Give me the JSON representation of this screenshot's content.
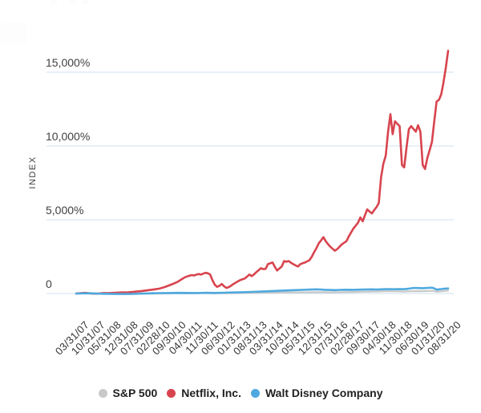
{
  "figure": {
    "y_axis_title": "INDEX",
    "y_tick_labels": [
      "15,000%",
      "10,000%",
      "5,000%",
      "0"
    ]
  },
  "chart_data": {
    "type": "line",
    "title": "",
    "ylabel": "INDEX",
    "y_unit": "percent cumulative return",
    "ylim": [
      -500,
      17000
    ],
    "y_ticks": [
      15000,
      10000,
      5000,
      0
    ],
    "grid": "horizontal",
    "legend_position": "bottom",
    "x_tick_labels": [
      "03/31/07",
      "10/31/07",
      "05/31/08",
      "12/31/08",
      "07/31/09",
      "02/28/10",
      "09/30/10",
      "04/30/11",
      "11/30/11",
      "06/30/12",
      "01/31/13",
      "08/31/13",
      "03/31/14",
      "10/31/14",
      "05/31/15",
      "12/31/15",
      "07/31/16",
      "02/28/17",
      "09/30/17",
      "04/30/18",
      "11/30/18",
      "06/30/19",
      "01/31/20",
      "08/31/20"
    ],
    "x_tick_month_index": [
      0,
      7,
      14,
      21,
      28,
      35,
      42,
      49,
      56,
      63,
      70,
      77,
      84,
      91,
      98,
      105,
      112,
      119,
      126,
      133,
      140,
      147,
      154,
      161
    ],
    "x_months_total": 161,
    "gridline_color": "#cfe0ef",
    "series": [
      {
        "name": "S&P 500",
        "color": "#c9c9c9",
        "points": [
          [
            0,
            0
          ],
          [
            3,
            5
          ],
          [
            6,
            8
          ],
          [
            9,
            -8
          ],
          [
            12,
            -18
          ],
          [
            15,
            -28
          ],
          [
            18,
            -38
          ],
          [
            21,
            -45
          ],
          [
            24,
            -35
          ],
          [
            27,
            -20
          ],
          [
            30,
            -10
          ],
          [
            33,
            -5
          ],
          [
            36,
            0
          ],
          [
            40,
            8
          ],
          [
            44,
            12
          ],
          [
            48,
            5
          ],
          [
            52,
            15
          ],
          [
            56,
            22
          ],
          [
            60,
            12
          ],
          [
            64,
            18
          ],
          [
            68,
            25
          ],
          [
            72,
            30
          ],
          [
            76,
            40
          ],
          [
            80,
            48
          ],
          [
            84,
            55
          ],
          [
            88,
            65
          ],
          [
            92,
            75
          ],
          [
            96,
            72
          ],
          [
            100,
            80
          ],
          [
            104,
            90
          ],
          [
            108,
            85
          ],
          [
            110,
            78
          ],
          [
            112,
            82
          ],
          [
            116,
            95
          ],
          [
            120,
            105
          ],
          [
            124,
            120
          ],
          [
            128,
            130
          ],
          [
            132,
            140
          ],
          [
            134,
            150
          ],
          [
            136,
            155
          ],
          [
            138,
            148
          ],
          [
            140,
            152
          ],
          [
            141,
            125
          ],
          [
            143,
            140
          ],
          [
            145,
            155
          ],
          [
            148,
            165
          ],
          [
            150,
            160
          ],
          [
            152,
            170
          ],
          [
            154,
            180
          ],
          [
            155,
            165
          ],
          [
            156,
            120
          ],
          [
            157,
            135
          ],
          [
            158,
            150
          ],
          [
            159,
            165
          ],
          [
            160,
            180
          ],
          [
            161,
            195
          ]
        ]
      },
      {
        "name": "Netflix, Inc.",
        "color": "#d8444e",
        "points": [
          [
            0,
            0
          ],
          [
            2,
            20
          ],
          [
            4,
            45
          ],
          [
            6,
            10
          ],
          [
            8,
            -10
          ],
          [
            10,
            5
          ],
          [
            12,
            30
          ],
          [
            14,
            20
          ],
          [
            16,
            45
          ],
          [
            18,
            60
          ],
          [
            20,
            80
          ],
          [
            22,
            70
          ],
          [
            24,
            100
          ],
          [
            26,
            130
          ],
          [
            28,
            160
          ],
          [
            30,
            200
          ],
          [
            32,
            240
          ],
          [
            34,
            280
          ],
          [
            36,
            330
          ],
          [
            38,
            420
          ],
          [
            40,
            540
          ],
          [
            41,
            600
          ],
          [
            42,
            660
          ],
          [
            44,
            800
          ],
          [
            45,
            900
          ],
          [
            46,
            1000
          ],
          [
            47,
            1100
          ],
          [
            48,
            1150
          ],
          [
            50,
            1250
          ],
          [
            51,
            1220
          ],
          [
            52,
            1280
          ],
          [
            53,
            1320
          ],
          [
            54,
            1280
          ],
          [
            55,
            1350
          ],
          [
            56,
            1400
          ],
          [
            57,
            1370
          ],
          [
            58,
            1280
          ],
          [
            59,
            900
          ],
          [
            60,
            600
          ],
          [
            61,
            450
          ],
          [
            62,
            520
          ],
          [
            63,
            645
          ],
          [
            64,
            500
          ],
          [
            65,
            380
          ],
          [
            66,
            430
          ],
          [
            67,
            520
          ],
          [
            68,
            640
          ],
          [
            70,
            820
          ],
          [
            71,
            915
          ],
          [
            72,
            960
          ],
          [
            73,
            1020
          ],
          [
            74,
            1150
          ],
          [
            75,
            1290
          ],
          [
            76,
            1180
          ],
          [
            77,
            1300
          ],
          [
            78,
            1450
          ],
          [
            79,
            1580
          ],
          [
            80,
            1720
          ],
          [
            81,
            1650
          ],
          [
            82,
            1670
          ],
          [
            83,
            1990
          ],
          [
            84,
            2050
          ],
          [
            85,
            2100
          ],
          [
            86,
            1800
          ],
          [
            87,
            1560
          ],
          [
            88,
            1700
          ],
          [
            89,
            1830
          ],
          [
            90,
            2200
          ],
          [
            91,
            2150
          ],
          [
            92,
            2200
          ],
          [
            93,
            2080
          ],
          [
            94,
            1990
          ],
          [
            95,
            1900
          ],
          [
            96,
            1830
          ],
          [
            97,
            1990
          ],
          [
            98,
            2050
          ],
          [
            99,
            2100
          ],
          [
            100,
            2180
          ],
          [
            101,
            2260
          ],
          [
            102,
            2500
          ],
          [
            103,
            2800
          ],
          [
            104,
            3070
          ],
          [
            105,
            3400
          ],
          [
            106,
            3600
          ],
          [
            107,
            3820
          ],
          [
            108,
            3550
          ],
          [
            109,
            3350
          ],
          [
            110,
            3170
          ],
          [
            111,
            3030
          ],
          [
            112,
            2900
          ],
          [
            113,
            3010
          ],
          [
            114,
            3170
          ],
          [
            115,
            3330
          ],
          [
            116,
            3440
          ],
          [
            117,
            3550
          ],
          [
            118,
            3870
          ],
          [
            119,
            4140
          ],
          [
            120,
            4400
          ],
          [
            121,
            4600
          ],
          [
            122,
            4800
          ],
          [
            123,
            5160
          ],
          [
            124,
            4890
          ],
          [
            125,
            5300
          ],
          [
            126,
            5700
          ],
          [
            127,
            5550
          ],
          [
            128,
            5430
          ],
          [
            129,
            5650
          ],
          [
            130,
            5860
          ],
          [
            131,
            6130
          ],
          [
            132,
            7900
          ],
          [
            133,
            8820
          ],
          [
            134,
            9350
          ],
          [
            135,
            10970
          ],
          [
            136,
            12150
          ],
          [
            137,
            10800
          ],
          [
            138,
            11670
          ],
          [
            139,
            11500
          ],
          [
            140,
            11340
          ],
          [
            141,
            8710
          ],
          [
            142,
            8550
          ],
          [
            143,
            9890
          ],
          [
            144,
            11130
          ],
          [
            145,
            11340
          ],
          [
            146,
            11150
          ],
          [
            147,
            10970
          ],
          [
            148,
            11400
          ],
          [
            149,
            10970
          ],
          [
            150,
            8710
          ],
          [
            151,
            8440
          ],
          [
            152,
            9190
          ],
          [
            153,
            9700
          ],
          [
            154,
            10270
          ],
          [
            155,
            11670
          ],
          [
            156,
            13010
          ],
          [
            157,
            13120
          ],
          [
            158,
            13500
          ],
          [
            159,
            14300
          ],
          [
            160,
            15300
          ],
          [
            161,
            16450
          ]
        ]
      },
      {
        "name": "Walt Disney Company",
        "color": "#4fa9de",
        "points": [
          [
            0,
            0
          ],
          [
            3,
            10
          ],
          [
            6,
            15
          ],
          [
            9,
            -5
          ],
          [
            12,
            -15
          ],
          [
            15,
            -22
          ],
          [
            18,
            -30
          ],
          [
            21,
            -35
          ],
          [
            24,
            -25
          ],
          [
            27,
            -10
          ],
          [
            30,
            5
          ],
          [
            33,
            15
          ],
          [
            36,
            25
          ],
          [
            40,
            30
          ],
          [
            44,
            45
          ],
          [
            48,
            40
          ],
          [
            52,
            30
          ],
          [
            56,
            50
          ],
          [
            60,
            40
          ],
          [
            64,
            55
          ],
          [
            68,
            70
          ],
          [
            72,
            85
          ],
          [
            76,
            110
          ],
          [
            80,
            130
          ],
          [
            84,
            160
          ],
          [
            88,
            185
          ],
          [
            92,
            210
          ],
          [
            96,
            235
          ],
          [
            100,
            260
          ],
          [
            104,
            280
          ],
          [
            106,
            265
          ],
          [
            108,
            250
          ],
          [
            110,
            240
          ],
          [
            112,
            230
          ],
          [
            114,
            245
          ],
          [
            116,
            255
          ],
          [
            120,
            250
          ],
          [
            124,
            265
          ],
          [
            128,
            280
          ],
          [
            130,
            270
          ],
          [
            132,
            285
          ],
          [
            134,
            295
          ],
          [
            136,
            300
          ],
          [
            138,
            290
          ],
          [
            140,
            305
          ],
          [
            141,
            290
          ],
          [
            143,
            310
          ],
          [
            145,
            355
          ],
          [
            146,
            380
          ],
          [
            148,
            370
          ],
          [
            150,
            360
          ],
          [
            152,
            380
          ],
          [
            154,
            390
          ],
          [
            155,
            350
          ],
          [
            156,
            260
          ],
          [
            157,
            280
          ],
          [
            158,
            300
          ],
          [
            159,
            320
          ],
          [
            160,
            330
          ],
          [
            161,
            345
          ]
        ]
      }
    ]
  }
}
